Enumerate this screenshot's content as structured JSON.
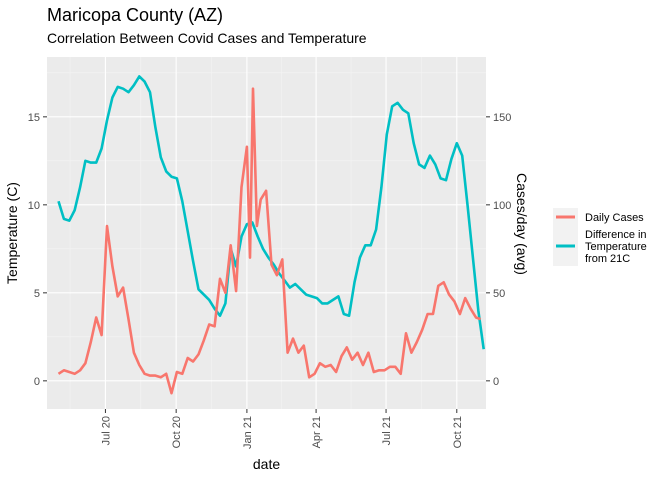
{
  "chart_data": {
    "type": "line",
    "title": "Maricopa County (AZ)",
    "subtitle": "Correlation Between Covid Cases and Temperature",
    "xlabel": "date",
    "ylabel": "Temperature (C)",
    "ylabel_right": "Cases/day (avg)",
    "xlim": [
      "2020-04-16",
      "2021-11-08"
    ],
    "ylim": [
      -1.6,
      18.4
    ],
    "ylim_right": [
      -16,
      184
    ],
    "x_ticks": [
      {
        "date": "2020-07-01",
        "label": "Jul 20"
      },
      {
        "date": "2020-10-01",
        "label": "Oct 20"
      },
      {
        "date": "2021-01-01",
        "label": "Jan 21"
      },
      {
        "date": "2021-04-01",
        "label": "Apr 21"
      },
      {
        "date": "2021-07-01",
        "label": "Jul 21"
      },
      {
        "date": "2021-10-01",
        "label": "Oct 21"
      }
    ],
    "y_ticks": [
      0,
      5,
      10,
      15
    ],
    "y_ticks_right": [
      0,
      50,
      100,
      150
    ],
    "grid": true,
    "legend_position": "right",
    "series": [
      {
        "name": "Daily Cases",
        "color": "#F8766D",
        "axis": "right",
        "points": [
          [
            "2020-05-01",
            4
          ],
          [
            "2020-05-08",
            6
          ],
          [
            "2020-05-15",
            5
          ],
          [
            "2020-05-22",
            4
          ],
          [
            "2020-05-29",
            6
          ],
          [
            "2020-06-05",
            10
          ],
          [
            "2020-06-12",
            22
          ],
          [
            "2020-06-19",
            36
          ],
          [
            "2020-06-26",
            26
          ],
          [
            "2020-07-03",
            88
          ],
          [
            "2020-07-10",
            65
          ],
          [
            "2020-07-17",
            48
          ],
          [
            "2020-07-24",
            53
          ],
          [
            "2020-07-31",
            35
          ],
          [
            "2020-08-07",
            16
          ],
          [
            "2020-08-14",
            9
          ],
          [
            "2020-08-21",
            4
          ],
          [
            "2020-08-28",
            3
          ],
          [
            "2020-09-04",
            3
          ],
          [
            "2020-09-11",
            2
          ],
          [
            "2020-09-18",
            4
          ],
          [
            "2020-09-25",
            -7
          ],
          [
            "2020-10-02",
            5
          ],
          [
            "2020-10-09",
            4
          ],
          [
            "2020-10-16",
            13
          ],
          [
            "2020-10-23",
            11
          ],
          [
            "2020-10-30",
            15
          ],
          [
            "2020-11-06",
            23
          ],
          [
            "2020-11-13",
            32
          ],
          [
            "2020-11-20",
            31
          ],
          [
            "2020-11-27",
            58
          ],
          [
            "2020-12-04",
            50
          ],
          [
            "2020-12-11",
            77
          ],
          [
            "2020-12-18",
            51
          ],
          [
            "2020-12-25",
            110
          ],
          [
            "2021-01-01",
            133
          ],
          [
            "2021-01-05",
            70
          ],
          [
            "2021-01-09",
            166
          ],
          [
            "2021-01-14",
            88
          ],
          [
            "2021-01-19",
            103
          ],
          [
            "2021-01-26",
            108
          ],
          [
            "2021-02-02",
            66
          ],
          [
            "2021-02-09",
            60
          ],
          [
            "2021-02-16",
            69
          ],
          [
            "2021-02-23",
            16
          ],
          [
            "2021-03-02",
            24
          ],
          [
            "2021-03-09",
            16
          ],
          [
            "2021-03-16",
            20
          ],
          [
            "2021-03-23",
            2
          ],
          [
            "2021-03-30",
            4
          ],
          [
            "2021-04-06",
            10
          ],
          [
            "2021-04-13",
            8
          ],
          [
            "2021-04-20",
            9
          ],
          [
            "2021-04-27",
            5
          ],
          [
            "2021-05-04",
            14
          ],
          [
            "2021-05-11",
            19
          ],
          [
            "2021-05-18",
            12
          ],
          [
            "2021-05-25",
            16
          ],
          [
            "2021-06-01",
            9
          ],
          [
            "2021-06-08",
            16
          ],
          [
            "2021-06-15",
            5
          ],
          [
            "2021-06-22",
            6
          ],
          [
            "2021-06-29",
            6
          ],
          [
            "2021-07-06",
            8
          ],
          [
            "2021-07-13",
            8
          ],
          [
            "2021-07-20",
            4
          ],
          [
            "2021-07-27",
            27
          ],
          [
            "2021-08-03",
            16
          ],
          [
            "2021-08-10",
            22
          ],
          [
            "2021-08-17",
            29
          ],
          [
            "2021-08-24",
            38
          ],
          [
            "2021-08-31",
            38
          ],
          [
            "2021-09-07",
            54
          ],
          [
            "2021-09-14",
            56
          ],
          [
            "2021-09-21",
            49
          ],
          [
            "2021-09-28",
            45
          ],
          [
            "2021-10-05",
            38
          ],
          [
            "2021-10-12",
            47
          ],
          [
            "2021-10-19",
            41
          ],
          [
            "2021-10-26",
            36
          ],
          [
            "2021-11-01",
            35
          ]
        ]
      },
      {
        "name": "Difference in Temperature from 21C",
        "color": "#00BFC4",
        "axis": "left",
        "points": [
          [
            "2020-05-01",
            10.2
          ],
          [
            "2020-05-08",
            9.2
          ],
          [
            "2020-05-15",
            9.1
          ],
          [
            "2020-05-22",
            9.7
          ],
          [
            "2020-05-29",
            11.0
          ],
          [
            "2020-06-05",
            12.5
          ],
          [
            "2020-06-12",
            12.4
          ],
          [
            "2020-06-19",
            12.4
          ],
          [
            "2020-06-26",
            13.2
          ],
          [
            "2020-07-03",
            14.8
          ],
          [
            "2020-07-10",
            16.1
          ],
          [
            "2020-07-17",
            16.7
          ],
          [
            "2020-07-24",
            16.6
          ],
          [
            "2020-07-31",
            16.4
          ],
          [
            "2020-08-07",
            16.8
          ],
          [
            "2020-08-14",
            17.3
          ],
          [
            "2020-08-21",
            17.0
          ],
          [
            "2020-08-28",
            16.4
          ],
          [
            "2020-09-04",
            14.4
          ],
          [
            "2020-09-11",
            12.7
          ],
          [
            "2020-09-18",
            11.9
          ],
          [
            "2020-09-25",
            11.6
          ],
          [
            "2020-10-02",
            11.5
          ],
          [
            "2020-10-09",
            10.2
          ],
          [
            "2020-10-16",
            8.5
          ],
          [
            "2020-10-23",
            6.8
          ],
          [
            "2020-10-30",
            5.2
          ],
          [
            "2020-11-06",
            4.9
          ],
          [
            "2020-11-13",
            4.6
          ],
          [
            "2020-11-20",
            4.1
          ],
          [
            "2020-11-27",
            3.7
          ],
          [
            "2020-12-04",
            4.4
          ],
          [
            "2020-12-11",
            7.5
          ],
          [
            "2020-12-18",
            6.5
          ],
          [
            "2020-12-25",
            8.2
          ],
          [
            "2021-01-01",
            8.9
          ],
          [
            "2021-01-08",
            9.0
          ],
          [
            "2021-01-15",
            8.2
          ],
          [
            "2021-01-22",
            7.5
          ],
          [
            "2021-01-29",
            7.0
          ],
          [
            "2021-02-05",
            6.6
          ],
          [
            "2021-02-12",
            6.1
          ],
          [
            "2021-02-19",
            5.7
          ],
          [
            "2021-02-26",
            5.3
          ],
          [
            "2021-03-05",
            5.5
          ],
          [
            "2021-03-12",
            5.2
          ],
          [
            "2021-03-19",
            4.9
          ],
          [
            "2021-03-26",
            4.8
          ],
          [
            "2021-04-02",
            4.7
          ],
          [
            "2021-04-09",
            4.4
          ],
          [
            "2021-04-16",
            4.4
          ],
          [
            "2021-04-23",
            4.6
          ],
          [
            "2021-04-30",
            4.8
          ],
          [
            "2021-05-07",
            3.8
          ],
          [
            "2021-05-14",
            3.7
          ],
          [
            "2021-05-21",
            5.6
          ],
          [
            "2021-05-28",
            7.0
          ],
          [
            "2021-06-04",
            7.7
          ],
          [
            "2021-06-11",
            7.7
          ],
          [
            "2021-06-18",
            8.6
          ],
          [
            "2021-06-25",
            11.0
          ],
          [
            "2021-07-02",
            14.0
          ],
          [
            "2021-07-09",
            15.6
          ],
          [
            "2021-07-16",
            15.8
          ],
          [
            "2021-07-23",
            15.4
          ],
          [
            "2021-07-30",
            15.2
          ],
          [
            "2021-08-06",
            13.5
          ],
          [
            "2021-08-13",
            12.3
          ],
          [
            "2021-08-20",
            12.1
          ],
          [
            "2021-08-27",
            12.8
          ],
          [
            "2021-09-03",
            12.3
          ],
          [
            "2021-09-10",
            11.5
          ],
          [
            "2021-09-17",
            11.4
          ],
          [
            "2021-09-24",
            12.6
          ],
          [
            "2021-10-01",
            13.5
          ],
          [
            "2021-10-08",
            12.8
          ],
          [
            "2021-10-15",
            10.0
          ],
          [
            "2021-10-22",
            7.0
          ],
          [
            "2021-10-29",
            4.0
          ],
          [
            "2021-11-05",
            1.8
          ]
        ]
      }
    ]
  },
  "legend": {
    "items": [
      {
        "lines": [
          "Daily Cases"
        ],
        "color": "#F8766D"
      },
      {
        "lines": [
          "Difference in",
          "Temperature",
          "from 21C"
        ],
        "color": "#00BFC4"
      }
    ]
  },
  "colors": {
    "panel_background": "#EBEBEB",
    "grid_major": "#FFFFFF",
    "grid_minor": "#F4F4F4"
  }
}
